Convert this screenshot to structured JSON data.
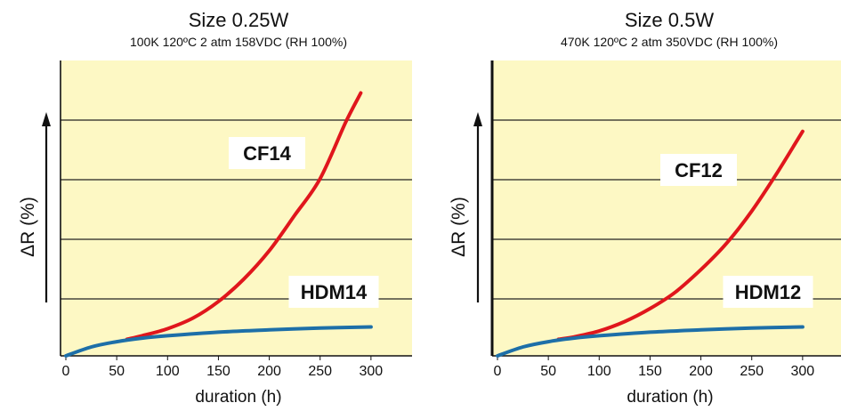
{
  "chart_data": [
    {
      "type": "line",
      "title": "Size 0.25W",
      "subtitle": "100K 120ºC 2 atm 158VDC (RH 100%)",
      "xlabel": "duration (h)",
      "ylabel": "ΔR (%)",
      "xlim": [
        0,
        350
      ],
      "ylim": [
        0,
        5
      ],
      "xticks": [
        "0",
        "50",
        "100",
        "150",
        "200",
        "250",
        "300"
      ],
      "grid": "horizontal",
      "background": "#fdf8c4",
      "series": [
        {
          "name": "CF14",
          "color": "#e0161c",
          "x": [
            60,
            75,
            100,
            125,
            150,
            175,
            200,
            225,
            250,
            275,
            290
          ],
          "y": [
            0.28,
            0.34,
            0.46,
            0.64,
            0.92,
            1.3,
            1.78,
            2.38,
            3.0,
            3.95,
            4.45
          ]
        },
        {
          "name": "HDM14",
          "color": "#1d6fa8",
          "x": [
            0,
            25,
            50,
            75,
            100,
            150,
            200,
            250,
            300
          ],
          "y": [
            0.0,
            0.15,
            0.24,
            0.3,
            0.34,
            0.4,
            0.44,
            0.47,
            0.49
          ]
        }
      ]
    },
    {
      "type": "line",
      "title": "Size 0.5W",
      "subtitle": "470K 120ºC 2 atm 350VDC (RH 100%)",
      "xlabel": "duration (h)",
      "ylabel": "ΔR (%)",
      "xlim": [
        0,
        350
      ],
      "ylim": [
        0,
        5
      ],
      "xticks": [
        "0",
        "50",
        "100",
        "150",
        "200",
        "250",
        "300"
      ],
      "grid": "horizontal",
      "background": "#fdf8c4",
      "series": [
        {
          "name": "CF12",
          "color": "#e0161c",
          "x": [
            60,
            75,
            100,
            125,
            150,
            175,
            200,
            225,
            250,
            275,
            300
          ],
          "y": [
            0.28,
            0.32,
            0.42,
            0.58,
            0.8,
            1.08,
            1.46,
            1.9,
            2.45,
            3.1,
            3.8
          ]
        },
        {
          "name": "HDM12",
          "color": "#1d6fa8",
          "x": [
            0,
            25,
            50,
            75,
            100,
            150,
            200,
            250,
            300
          ],
          "y": [
            0.0,
            0.15,
            0.24,
            0.3,
            0.34,
            0.4,
            0.44,
            0.47,
            0.49
          ]
        }
      ]
    }
  ]
}
